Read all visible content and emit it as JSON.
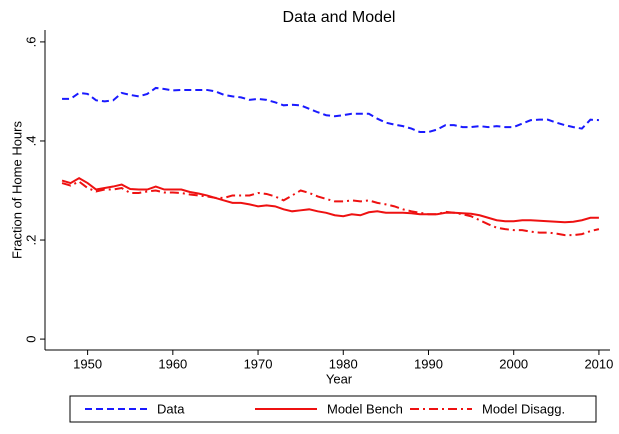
{
  "chart_data": {
    "type": "line",
    "title": "Data and Model",
    "x_label": "Year",
    "y_label": "Fraction of Home Hours",
    "x": [
      1947,
      1948,
      1949,
      1950,
      1951,
      1952,
      1953,
      1954,
      1955,
      1956,
      1957,
      1958,
      1959,
      1960,
      1961,
      1962,
      1963,
      1964,
      1965,
      1966,
      1967,
      1968,
      1969,
      1970,
      1971,
      1972,
      1973,
      1974,
      1975,
      1976,
      1977,
      1978,
      1979,
      1980,
      1981,
      1982,
      1983,
      1984,
      1985,
      1986,
      1987,
      1988,
      1989,
      1990,
      1991,
      1992,
      1993,
      1994,
      1995,
      1996,
      1997,
      1998,
      1999,
      2000,
      2001,
      2002,
      2003,
      2004,
      2005,
      2006,
      2007,
      2008,
      2009,
      2010
    ],
    "series": [
      {
        "name": "Data",
        "color": "#1a1aff",
        "style": "dashed",
        "values": [
          0.485,
          0.485,
          0.497,
          0.495,
          0.482,
          0.48,
          0.482,
          0.497,
          0.493,
          0.49,
          0.495,
          0.507,
          0.505,
          0.502,
          0.503,
          0.503,
          0.503,
          0.503,
          0.5,
          0.493,
          0.49,
          0.488,
          0.483,
          0.485,
          0.483,
          0.478,
          0.472,
          0.473,
          0.472,
          0.465,
          0.458,
          0.452,
          0.45,
          0.452,
          0.455,
          0.455,
          0.455,
          0.445,
          0.437,
          0.433,
          0.43,
          0.425,
          0.418,
          0.418,
          0.423,
          0.432,
          0.432,
          0.428,
          0.428,
          0.43,
          0.428,
          0.43,
          0.428,
          0.428,
          0.435,
          0.442,
          0.443,
          0.443,
          0.437,
          0.432,
          0.428,
          0.425,
          0.443,
          0.442
        ]
      },
      {
        "name": "Model Bench",
        "color": "#ee1111",
        "style": "solid",
        "values": [
          0.32,
          0.315,
          0.325,
          0.315,
          0.302,
          0.305,
          0.308,
          0.312,
          0.303,
          0.302,
          0.302,
          0.308,
          0.302,
          0.302,
          0.302,
          0.297,
          0.294,
          0.29,
          0.285,
          0.28,
          0.275,
          0.275,
          0.272,
          0.268,
          0.27,
          0.268,
          0.262,
          0.258,
          0.26,
          0.262,
          0.258,
          0.255,
          0.25,
          0.248,
          0.252,
          0.25,
          0.256,
          0.258,
          0.255,
          0.255,
          0.255,
          0.254,
          0.252,
          0.252,
          0.252,
          0.255,
          0.255,
          0.254,
          0.253,
          0.25,
          0.245,
          0.24,
          0.238,
          0.238,
          0.24,
          0.24,
          0.239,
          0.238,
          0.237,
          0.236,
          0.237,
          0.24,
          0.245,
          0.245
        ]
      },
      {
        "name": "Model Disagg.",
        "color": "#ee1111",
        "style": "dashdot",
        "values": [
          0.315,
          0.31,
          0.318,
          0.305,
          0.298,
          0.302,
          0.302,
          0.305,
          0.295,
          0.295,
          0.298,
          0.3,
          0.296,
          0.296,
          0.295,
          0.292,
          0.29,
          0.288,
          0.285,
          0.285,
          0.29,
          0.29,
          0.29,
          0.295,
          0.293,
          0.288,
          0.28,
          0.29,
          0.3,
          0.295,
          0.288,
          0.283,
          0.278,
          0.278,
          0.28,
          0.278,
          0.28,
          0.275,
          0.272,
          0.268,
          0.262,
          0.258,
          0.255,
          0.252,
          0.252,
          0.257,
          0.255,
          0.252,
          0.248,
          0.24,
          0.232,
          0.225,
          0.222,
          0.22,
          0.22,
          0.217,
          0.215,
          0.215,
          0.213,
          0.21,
          0.21,
          0.212,
          0.218,
          0.222
        ]
      }
    ],
    "xlim": [
      1945,
      2011.3
    ],
    "xticks": [
      1950,
      1960,
      1970,
      1980,
      1990,
      2000,
      2010
    ],
    "ylim": [
      -0.02,
      0.62
    ],
    "yticks": [
      0,
      {
        "value": 0.2,
        "label": ".2"
      },
      {
        "value": 0.4,
        "label": ".4"
      },
      {
        "value": 0.6,
        "label": ".6"
      }
    ],
    "legend": "bottom"
  }
}
